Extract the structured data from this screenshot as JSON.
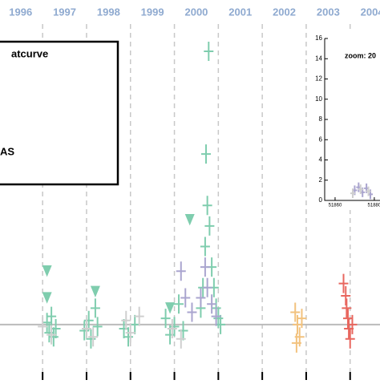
{
  "chart_data": [
    {
      "type": "scatter",
      "year_labels": [
        "1996",
        "1997",
        "1998",
        "1999",
        "2000",
        "2001",
        "2002",
        "2003",
        "2004"
      ],
      "legend_texts": [
        "atcurve",
        "AS"
      ],
      "xlim": [
        1996.03,
        2004.68
      ],
      "ylim": [
        -1.5,
        17
      ],
      "xticks": [
        1997,
        1998,
        1999,
        2000,
        2001,
        2002,
        2003,
        2004
      ],
      "grid": true,
      "reference_line": 1.2,
      "series": [
        {
          "color": "#7fcdae",
          "marker": "cross",
          "x": [
            1997.1,
            1997.15,
            1997.2,
            1997.25,
            1997.3,
            1997.95,
            1998.05,
            1998.1,
            1998.2,
            1998.25,
            1998.85,
            1998.95,
            1999.1,
            1999.8,
            1999.9,
            2000.0,
            2000.1,
            2000.2,
            2000.6,
            2000.65,
            2000.7,
            2000.72,
            2000.75,
            2000.78,
            2000.8,
            2000.85,
            2000.9,
            2000.95,
            2001.0,
            2001.05
          ],
          "values": [
            1.3,
            0.8,
            1.6,
            0.6,
            1.0,
            0.9,
            1.4,
            0.5,
            2.0,
            1.1,
            1.0,
            0.6,
            1.2,
            1.5,
            0.7,
            1.1,
            2.2,
            0.9,
            2,
            3,
            5,
            9.5,
            7,
            14.5,
            6,
            4,
            3,
            2,
            1.5,
            1.2
          ]
        },
        {
          "color": "#aaa5cf",
          "marker": "cross",
          "x": [
            2000.15,
            2000.25,
            2000.4,
            2000.6,
            2000.7,
            2000.75,
            2000.85,
            2000.95
          ],
          "values": [
            3.8,
            2.5,
            1.8,
            2.5,
            4,
            3,
            2.2,
            1.6
          ]
        },
        {
          "color": "#cfcfcf",
          "marker": "cross",
          "x": [
            1997.0,
            1997.2,
            1998.0,
            1998.15,
            1998.9,
            1999.0,
            1999.2,
            1999.95,
            2000.15
          ],
          "values": [
            1.1,
            0.7,
            1.0,
            0.6,
            1.4,
            0.8,
            1.6,
            1.0,
            0.5
          ]
        },
        {
          "color": "#f2c27e",
          "marker": "cross",
          "x": [
            2002.75,
            2002.8,
            2002.85,
            2002.9,
            2002.78
          ],
          "values": [
            1.8,
            1.2,
            0.6,
            1.5,
            0.3
          ]
        },
        {
          "color": "#e8675f",
          "marker": "cross",
          "x": [
            2003.85,
            2003.9,
            2003.92,
            2003.95,
            2003.97,
            2004.0,
            2004.05
          ],
          "values": [
            3.2,
            2.6,
            2.0,
            1.5,
            1.0,
            0.5,
            1.2
          ]
        },
        {
          "color": "#7fcdae",
          "marker": "triangle-down",
          "x": [
            1997.1,
            1997.1,
            1998.2,
            1999.9,
            2000.35
          ],
          "values": [
            3.8,
            2.5,
            2.8,
            2.0,
            6.3
          ]
        }
      ]
    },
    {
      "type": "scatter",
      "annotation": "zoom: 20",
      "xlim": [
        51854.7,
        51882.9
      ],
      "ylim": [
        0,
        16
      ],
      "xticks": [
        {
          "value": 51860,
          "label": "51860"
        },
        {
          "value": 51880,
          "label": "51880"
        }
      ],
      "yticks": [
        0,
        2,
        4,
        6,
        8,
        10,
        12,
        14,
        16
      ],
      "series": [
        {
          "color": "#aaa5cf",
          "marker": "cross",
          "x": [
            51870,
            51872,
            51874,
            51876,
            51878
          ],
          "values": [
            1.0,
            1.3,
            0.8,
            1.2,
            0.6
          ]
        },
        {
          "color": "#cfcfcf",
          "marker": "cross",
          "x": [
            51869,
            51873,
            51877
          ],
          "values": [
            0.7,
            1.1,
            0.9
          ]
        }
      ]
    }
  ]
}
